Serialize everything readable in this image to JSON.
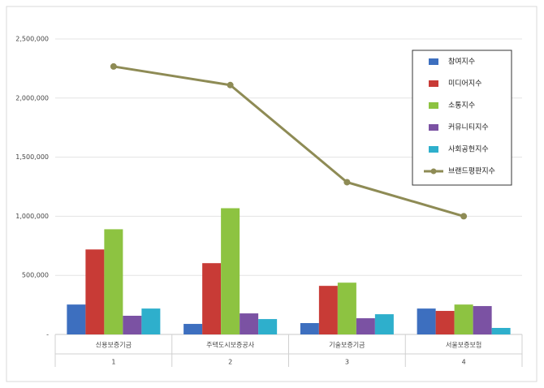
{
  "chart_data": {
    "type": "bar_line",
    "categories": [
      "신용보증기금",
      "주택도시보증공사",
      "기술보증기금",
      "서울보증보험"
    ],
    "sub_labels": [
      "1",
      "2",
      "3",
      "4"
    ],
    "series": [
      {
        "name": "참여지수",
        "color": "#3d6fbf",
        "type": "bar",
        "values": [
          253000,
          89000,
          96000,
          219000
        ]
      },
      {
        "name": "미디어지수",
        "color": "#c83b36",
        "type": "bar",
        "values": [
          719000,
          603000,
          411000,
          199000
        ]
      },
      {
        "name": "소통지수",
        "color": "#8dc341",
        "type": "bar",
        "values": [
          890000,
          1068000,
          438000,
          253000
        ]
      },
      {
        "name": "커뮤니티지수",
        "color": "#7b52a3",
        "type": "bar",
        "values": [
          158000,
          178000,
          137000,
          240000
        ]
      },
      {
        "name": "사회공헌지수",
        "color": "#2eafcc",
        "type": "bar",
        "values": [
          219000,
          130000,
          171000,
          55000
        ]
      },
      {
        "name": "브랜드평판지수",
        "color": "#8e8b55",
        "type": "line",
        "values": [
          2267000,
          2110000,
          1288000,
          1000000
        ]
      }
    ],
    "ylim": [
      0,
      2500000
    ],
    "yticks": [
      {
        "value": 0,
        "label": "-"
      },
      {
        "value": 500000,
        "label": "500,000"
      },
      {
        "value": 1000000,
        "label": "1,000,000"
      },
      {
        "value": 1500000,
        "label": "1,500,000"
      },
      {
        "value": 2000000,
        "label": "2,000,000"
      },
      {
        "value": 2500000,
        "label": "2,500,000"
      }
    ],
    "grid": true,
    "legend": "upper right"
  }
}
